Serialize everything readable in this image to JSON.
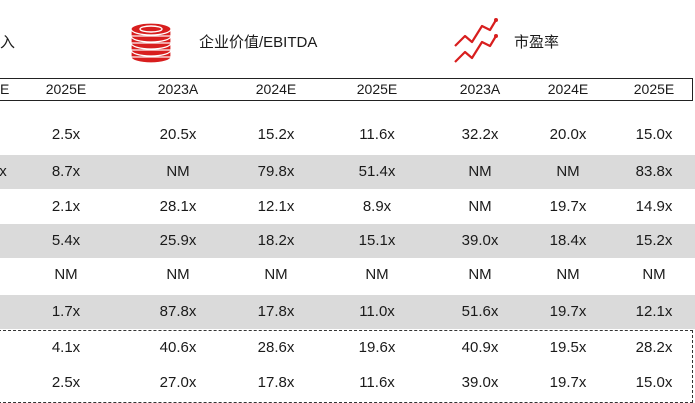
{
  "header": {
    "cut_label": "入",
    "ev_ebitda_label": "企业价值/EBITDA",
    "pe_label": "市盈率",
    "cut_col_label": "E",
    "columns": [
      "2025E",
      "2023A",
      "2024E",
      "2025E",
      "2023A",
      "2024E",
      "2025E"
    ]
  },
  "rows": [
    {
      "shaded": false,
      "cut": "",
      "values": [
        "2.5x",
        "20.5x",
        "15.2x",
        "11.6x",
        "32.2x",
        "20.0x",
        "15.0x"
      ]
    },
    {
      "shaded": true,
      "cut": "x",
      "values": [
        "8.7x",
        "NM",
        "79.8x",
        "51.4x",
        "NM",
        "NM",
        "83.8x"
      ]
    },
    {
      "shaded": false,
      "cut": "",
      "values": [
        "2.1x",
        "28.1x",
        "12.1x",
        "8.9x",
        "NM",
        "19.7x",
        "14.9x"
      ]
    },
    {
      "shaded": true,
      "cut": "",
      "values": [
        "5.4x",
        "25.9x",
        "18.2x",
        "15.1x",
        "39.0x",
        "18.4x",
        "15.2x"
      ]
    },
    {
      "shaded": false,
      "cut": "",
      "values": [
        "NM",
        "NM",
        "NM",
        "NM",
        "NM",
        "NM",
        "NM"
      ]
    },
    {
      "shaded": true,
      "cut": "",
      "values": [
        "1.7x",
        "87.8x",
        "17.8x",
        "11.0x",
        "51.6x",
        "19.7x",
        "12.1x"
      ]
    },
    {
      "shaded": false,
      "cut": "",
      "values": [
        "4.1x",
        "40.6x",
        "28.6x",
        "19.6x",
        "40.9x",
        "19.5x",
        "28.2x"
      ]
    },
    {
      "shaded": false,
      "cut": "",
      "values": [
        "2.5x",
        "27.0x",
        "17.8x",
        "11.6x",
        "39.0x",
        "19.7x",
        "15.0x"
      ]
    }
  ],
  "colors": {
    "accent_red": "#d81e1e",
    "shade": "#dadada"
  },
  "icons": {
    "ev_icon": "coin-stack-icon",
    "pe_icon": "trend-line-icon"
  }
}
